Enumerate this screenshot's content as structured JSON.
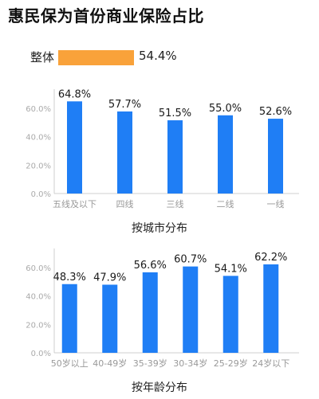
{
  "title": "惠民保为首份商业保险占比",
  "overall": {
    "label": "整体",
    "value": 54.4,
    "value_label": "54.4%",
    "color": "#f9a23a"
  },
  "chart_data": [
    {
      "type": "bar",
      "title": "按城市分布",
      "categories": [
        "五线及以下",
        "四线",
        "三线",
        "二线",
        "一线"
      ],
      "values": [
        64.8,
        57.7,
        51.5,
        55.0,
        52.6
      ],
      "value_labels": [
        "64.8%",
        "57.7%",
        "51.5%",
        "55.0%",
        "52.6%"
      ],
      "yticks": [
        "0.0%",
        "20.0%",
        "40.0%",
        "60.0%"
      ],
      "ylim": [
        0,
        70
      ],
      "bar_color": "#1f7ef5",
      "grid": false
    },
    {
      "type": "bar",
      "title": "按年龄分布",
      "categories": [
        "50岁以上",
        "40-49岁",
        "35-39岁",
        "30-34岁",
        "25-29岁",
        "24岁以下"
      ],
      "values": [
        48.3,
        47.9,
        56.6,
        60.7,
        54.1,
        62.2
      ],
      "value_labels": [
        "48.3%",
        "47.9%",
        "56.6%",
        "60.7%",
        "54.1%",
        "62.2%"
      ],
      "yticks": [
        "0.0%",
        "20.0%",
        "40.0%",
        "60.0%"
      ],
      "ylim": [
        0,
        70
      ],
      "bar_color": "#1f7ef5",
      "grid": false
    }
  ]
}
